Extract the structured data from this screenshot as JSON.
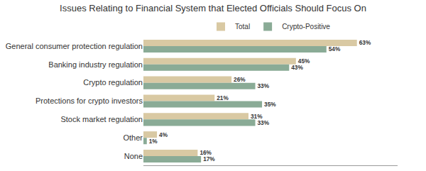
{
  "chart_data": {
    "type": "bar",
    "orientation": "horizontal",
    "title": "Issues Relating to Financial System that Elected Officials Should Focus On",
    "categories": [
      "General consumer protection regulation",
      "Banking industry regulation",
      "Crypto regulation",
      "Protections for crypto investors",
      "Stock market regulation",
      "Other",
      "None"
    ],
    "series": [
      {
        "name": "Total",
        "color": "#d9c9a3",
        "values": [
          63,
          45,
          26,
          21,
          31,
          4,
          16
        ],
        "value_labels": [
          "63%",
          "45%",
          "26%",
          "21%",
          "31%",
          "4%",
          "16%"
        ]
      },
      {
        "name": "Crypto-Positive",
        "color": "#8aab96",
        "values": [
          54,
          43,
          33,
          35,
          33,
          1,
          17
        ],
        "value_labels": [
          "54%",
          "43%",
          "33%",
          "35%",
          "33%",
          "1%",
          "17%"
        ]
      }
    ],
    "xlim": [
      0,
      75
    ],
    "data_labels": true,
    "tick_labels": "y",
    "grid": false,
    "legend": "top"
  }
}
